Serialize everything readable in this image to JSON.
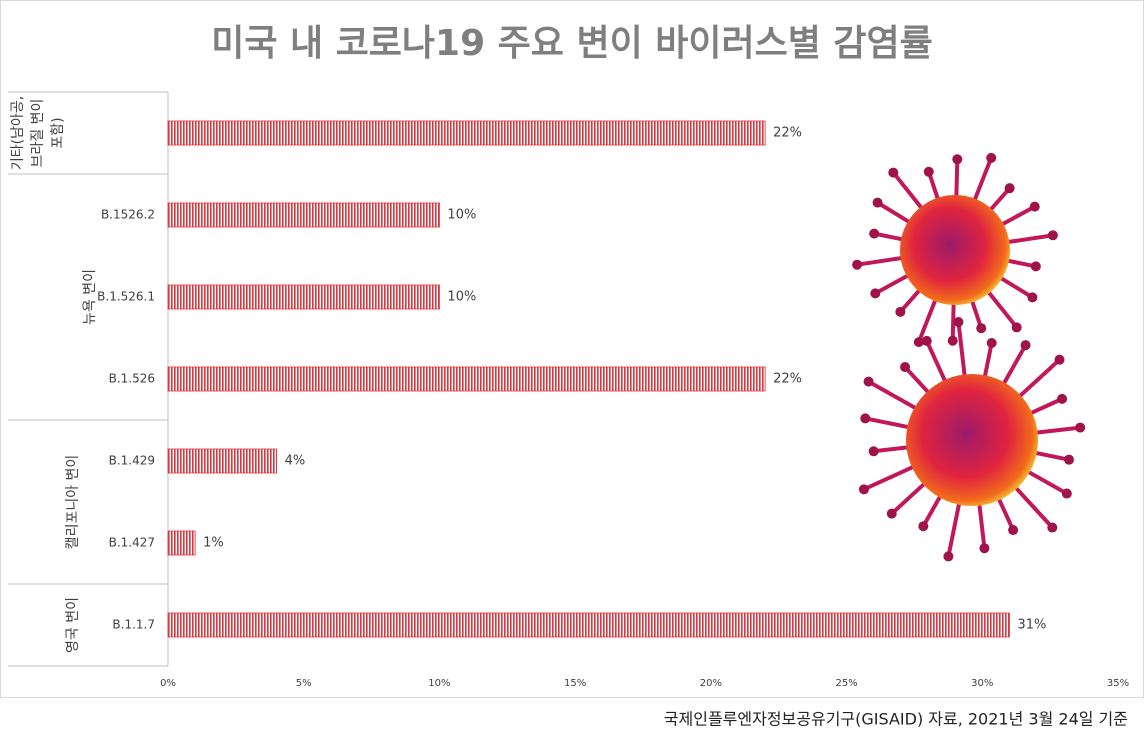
{
  "chart_data": {
    "type": "bar",
    "orientation": "horizontal",
    "title": "미국 내 코로나19 주요 변이 바이러스별 감염률",
    "groups": [
      {
        "label": [
          "기타(남아공,",
          "브라질 변이",
          "포함)"
        ],
        "categories": [
          null
        ]
      },
      {
        "label": [
          "뉴욕 변이"
        ],
        "categories": [
          "B.1526.2",
          "B.1.526.1",
          "B.1.526"
        ]
      },
      {
        "label": [
          "캘리포니아 변이"
        ],
        "categories": [
          "B.1.429",
          "B.1.427"
        ]
      },
      {
        "label": [
          "영국 변이"
        ],
        "categories": [
          "B.1.1.7"
        ]
      }
    ],
    "values": [
      22,
      10,
      10,
      22,
      4,
      1,
      31
    ],
    "value_labels": [
      "22%",
      "10%",
      "10%",
      "22%",
      "4%",
      "1%",
      "31%"
    ],
    "color": "#d9363e",
    "xlim": [
      0,
      35
    ],
    "xticks": [
      {
        "value": 0,
        "label": "0%"
      },
      {
        "value": 5,
        "label": "5%"
      },
      {
        "value": 10,
        "label": "10%"
      },
      {
        "value": 15,
        "label": "15%"
      },
      {
        "value": 20,
        "label": "20%"
      },
      {
        "value": 25,
        "label": "25%"
      },
      {
        "value": 30,
        "label": "30%"
      },
      {
        "value": 35,
        "label": "35%"
      }
    ],
    "source": "국제인플루엔자정보공유기구(GISAID) 자료, 2021년 3월 24일 기준"
  }
}
